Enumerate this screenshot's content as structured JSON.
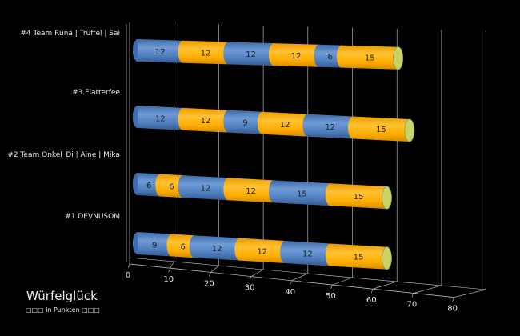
{
  "chart_data": {
    "type": "bar",
    "orientation": "horizontal",
    "stacked": true,
    "style": "3d-cylinder",
    "title": "Würfelglück",
    "subtitle": "□□□ in Punkten □□□",
    "xlim": [
      0,
      80
    ],
    "xticks": [
      "0",
      "10",
      "20",
      "30",
      "40",
      "50",
      "60",
      "70",
      "80"
    ],
    "categories": [
      "#4 Team Runa | Trüffel | Sai",
      "#3 Flatterfee",
      "#2 Team Onkel_Di | Aine | Mika",
      "#1 DEVNUSOM"
    ],
    "stacks": [
      [
        12,
        12,
        12,
        12,
        6,
        15
      ],
      [
        12,
        12,
        9,
        12,
        12,
        15
      ],
      [
        6,
        6,
        12,
        12,
        15,
        15
      ],
      [
        9,
        6,
        12,
        12,
        12,
        15
      ]
    ],
    "colors": [
      "#4f81bd",
      "#ffab00"
    ]
  }
}
